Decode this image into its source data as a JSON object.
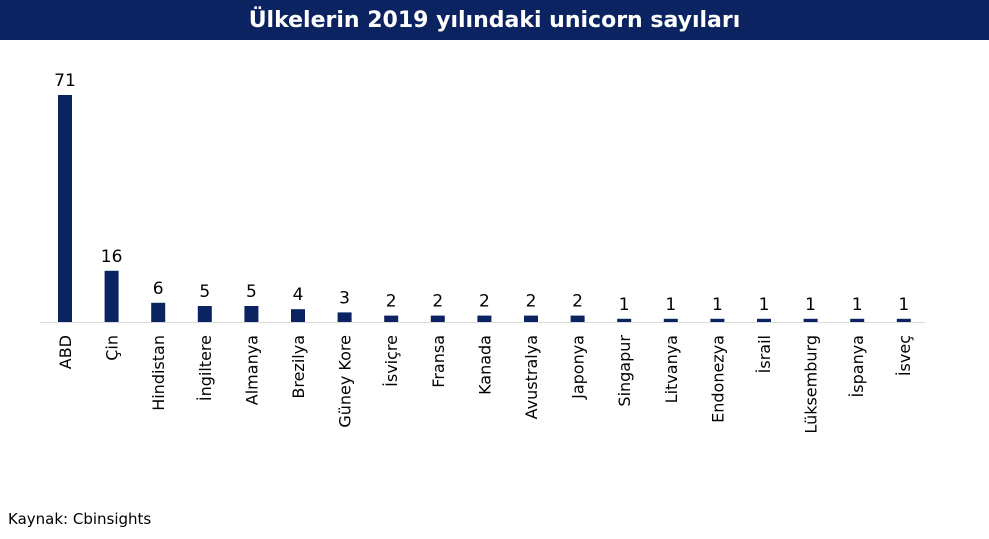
{
  "chart_data": {
    "type": "bar",
    "title": "Ülkelerin 2019 yılındaki unicorn sayıları",
    "categories": [
      "ABD",
      "Çin",
      "Hindistan",
      "İngiltere",
      "Almanya",
      "Brezilya",
      "Güney Kore",
      "İsviçre",
      "Fransa",
      "Kanada",
      "Avustralya",
      "Japonya",
      "Singapur",
      "Litvanya",
      "Endonezya",
      "İsrail",
      "Lüksemburg",
      "İspanya",
      "İsveç"
    ],
    "values": [
      71,
      16,
      6,
      5,
      5,
      4,
      3,
      2,
      2,
      2,
      2,
      2,
      1,
      1,
      1,
      1,
      1,
      1,
      1
    ],
    "xlabel": "",
    "ylabel": "",
    "ylim": [
      0,
      75
    ],
    "grid": false,
    "legend": "none",
    "colors": {
      "bar": "#0b2461",
      "title_bg": "#0b2461",
      "axis": "#d9d9d9"
    }
  },
  "source": "Kaynak: Cbinsights"
}
